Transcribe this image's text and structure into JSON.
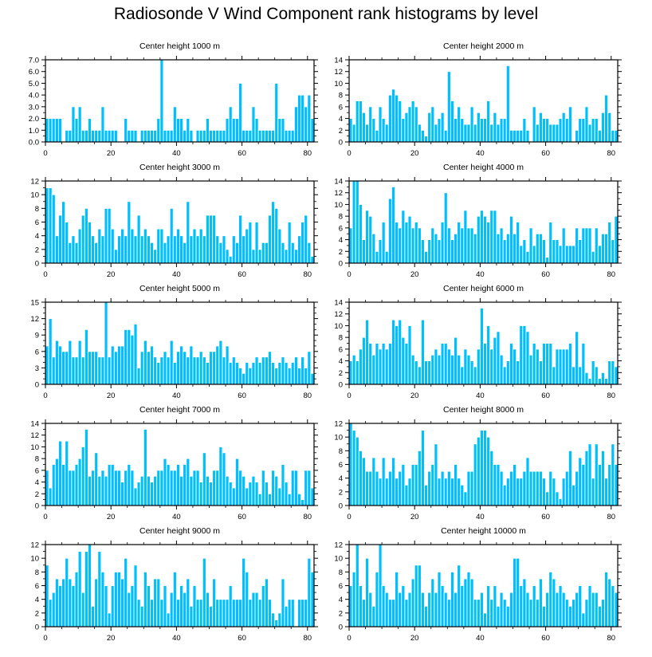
{
  "title": "Radiosonde V Wind Component rank histograms by level",
  "colors": {
    "bar": "#00bfff",
    "bar_edge": "#ffffff",
    "axis": "#000000"
  },
  "chart_data": [
    {
      "type": "bar",
      "title": "Center height 1000 m",
      "xlim": [
        0,
        82
      ],
      "ylim": [
        0,
        7
      ],
      "xticks": [
        0,
        20,
        40,
        60,
        80
      ],
      "yticks": [
        0,
        1,
        2,
        3,
        4,
        5,
        6,
        7
      ],
      "ytick_labels": [
        "0.0",
        "1.0",
        "2.0",
        "3.0",
        "4.0",
        "5.0",
        "6.0",
        "7.0"
      ],
      "values": [
        2,
        2,
        2,
        2,
        2,
        0,
        1,
        1,
        3,
        2,
        3,
        1,
        1,
        2,
        1,
        1,
        1,
        3,
        1,
        1,
        1,
        1,
        0,
        0,
        2,
        1,
        1,
        1,
        0,
        1,
        1,
        1,
        1,
        1,
        2,
        7,
        1,
        1,
        1,
        3,
        2,
        2,
        1,
        2,
        1,
        0,
        1,
        1,
        1,
        2,
        1,
        1,
        1,
        1,
        1,
        2,
        3,
        2,
        2,
        5,
        1,
        1,
        1,
        3,
        2,
        1,
        1,
        1,
        1,
        1,
        5,
        2,
        2,
        1,
        1,
        1,
        3,
        4,
        4,
        3,
        4,
        2
      ]
    },
    {
      "type": "bar",
      "title": "Center height 2000 m",
      "xlim": [
        0,
        82
      ],
      "ylim": [
        0,
        14
      ],
      "xticks": [
        0,
        20,
        40,
        60,
        80
      ],
      "yticks": [
        0,
        2,
        4,
        6,
        8,
        10,
        12,
        14
      ],
      "ytick_labels": [
        "0",
        "2",
        "4",
        "6",
        "8",
        "10",
        "12",
        "14"
      ],
      "values": [
        4,
        3,
        7,
        7,
        5,
        3,
        6,
        4,
        2,
        6,
        4,
        3,
        8,
        9,
        8,
        7,
        4,
        5,
        6,
        7,
        6,
        3,
        2,
        1,
        5,
        6,
        3,
        4,
        5,
        2,
        12,
        7,
        4,
        6,
        4,
        3,
        3,
        6,
        3,
        5,
        4,
        4,
        7,
        3,
        5,
        3,
        4,
        4,
        13,
        2,
        2,
        2,
        2,
        4,
        2,
        0,
        6,
        3,
        5,
        4,
        4,
        3,
        3,
        3,
        4,
        5,
        4,
        6,
        0,
        2,
        4,
        4,
        6,
        3,
        4,
        4,
        2,
        5,
        8,
        5,
        2,
        2
      ]
    },
    {
      "type": "bar",
      "title": "Center height 3000 m",
      "xlim": [
        0,
        82
      ],
      "ylim": [
        0,
        12
      ],
      "xticks": [
        0,
        20,
        40,
        60,
        80
      ],
      "yticks": [
        0,
        2,
        4,
        6,
        8,
        10,
        12
      ],
      "ytick_labels": [
        "0",
        "2",
        "4",
        "6",
        "8",
        "10",
        "12"
      ],
      "values": [
        11,
        11,
        10,
        4,
        7,
        9,
        6,
        3,
        4,
        3,
        5,
        7,
        8,
        6,
        4,
        3,
        5,
        4,
        8,
        8,
        5,
        2,
        4,
        5,
        4,
        9,
        5,
        4,
        7,
        4,
        5,
        4,
        3,
        2,
        5,
        5,
        3,
        4,
        8,
        4,
        5,
        4,
        3,
        9,
        4,
        5,
        4,
        5,
        4,
        7,
        7,
        7,
        4,
        3,
        4,
        2,
        1,
        4,
        3,
        7,
        4,
        5,
        6,
        2,
        6,
        2,
        3,
        3,
        7,
        9,
        8,
        5,
        3,
        2,
        6,
        3,
        2,
        4,
        6,
        7,
        3,
        1
      ]
    },
    {
      "type": "bar",
      "title": "Center height 4000 m",
      "xlim": [
        0,
        82
      ],
      "ylim": [
        0,
        14
      ],
      "xticks": [
        0,
        20,
        40,
        60,
        80
      ],
      "yticks": [
        0,
        2,
        4,
        6,
        8,
        10,
        12,
        14
      ],
      "ytick_labels": [
        "0",
        "2",
        "4",
        "6",
        "8",
        "10",
        "12",
        "14"
      ],
      "values": [
        6,
        14,
        14,
        10,
        4,
        9,
        8,
        5,
        2,
        4,
        7,
        2,
        11,
        13,
        7,
        6,
        9,
        7,
        8,
        6,
        7,
        6,
        4,
        2,
        4,
        6,
        5,
        4,
        7,
        12,
        6,
        4,
        5,
        7,
        6,
        9,
        6,
        6,
        5,
        8,
        9,
        8,
        7,
        9,
        9,
        5,
        6,
        4,
        5,
        8,
        5,
        7,
        3,
        4,
        2,
        6,
        3,
        5,
        5,
        4,
        1,
        7,
        4,
        4,
        3,
        6,
        3,
        3,
        3,
        6,
        4,
        6,
        6,
        6,
        2,
        6,
        3,
        5,
        5,
        7,
        4,
        8
      ]
    },
    {
      "type": "bar",
      "title": "Center height 5000 m",
      "xlim": [
        0,
        82
      ],
      "ylim": [
        0,
        15
      ],
      "xticks": [
        0,
        20,
        40,
        60,
        80
      ],
      "yticks": [
        0,
        3,
        6,
        9,
        12,
        15
      ],
      "ytick_labels": [
        "0",
        "3",
        "6",
        "9",
        "12",
        "15"
      ],
      "values": [
        7,
        12,
        5,
        8,
        7,
        6,
        6,
        8,
        5,
        5,
        8,
        5,
        10,
        6,
        6,
        6,
        5,
        5,
        15,
        5,
        7,
        6,
        7,
        7,
        10,
        10,
        9,
        11,
        3,
        6,
        8,
        6,
        7,
        5,
        4,
        5,
        6,
        5,
        8,
        4,
        6,
        7,
        6,
        5,
        7,
        5,
        5,
        6,
        5,
        4,
        6,
        6,
        7,
        8,
        5,
        7,
        4,
        5,
        4,
        3,
        2,
        4,
        3,
        4,
        5,
        4,
        5,
        5,
        6,
        4,
        3,
        4,
        5,
        4,
        3,
        4,
        5,
        3,
        5,
        3,
        6,
        2
      ]
    },
    {
      "type": "bar",
      "title": "Center height 6000 m",
      "xlim": [
        0,
        82
      ],
      "ylim": [
        0,
        14
      ],
      "xticks": [
        0,
        20,
        40,
        60,
        80
      ],
      "yticks": [
        0,
        2,
        4,
        6,
        8,
        10,
        12,
        14
      ],
      "ytick_labels": [
        "0",
        "2",
        "4",
        "6",
        "8",
        "10",
        "12",
        "14"
      ],
      "values": [
        4,
        5,
        4,
        6,
        8,
        11,
        7,
        5,
        7,
        6,
        7,
        6,
        7,
        11,
        10,
        11,
        8,
        7,
        10,
        5,
        4,
        3,
        11,
        4,
        4,
        5,
        6,
        5,
        7,
        7,
        6,
        5,
        8,
        5,
        3,
        6,
        5,
        4,
        3,
        6,
        13,
        7,
        10,
        6,
        8,
        9,
        5,
        3,
        4,
        7,
        6,
        4,
        10,
        10,
        9,
        5,
        7,
        6,
        4,
        7,
        7,
        7,
        3,
        6,
        6,
        6,
        6,
        7,
        3,
        9,
        3,
        7,
        2,
        1,
        4,
        3,
        1,
        2,
        1,
        4,
        4,
        3
      ]
    },
    {
      "type": "bar",
      "title": "Center height 7000 m",
      "xlim": [
        0,
        82
      ],
      "ylim": [
        0,
        14
      ],
      "xticks": [
        0,
        20,
        40,
        60,
        80
      ],
      "yticks": [
        0,
        2,
        4,
        6,
        8,
        10,
        12,
        14
      ],
      "ytick_labels": [
        "0",
        "2",
        "4",
        "6",
        "8",
        "10",
        "12",
        "14"
      ],
      "values": [
        6,
        3,
        7,
        8,
        11,
        7,
        11,
        6,
        6,
        7,
        8,
        10,
        13,
        5,
        6,
        9,
        5,
        6,
        5,
        7,
        7,
        6,
        6,
        4,
        6,
        7,
        6,
        3,
        4,
        5,
        13,
        5,
        4,
        5,
        6,
        6,
        8,
        7,
        6,
        6,
        7,
        5,
        7,
        8,
        5,
        6,
        6,
        4,
        9,
        5,
        4,
        6,
        6,
        10,
        9,
        5,
        4,
        3,
        8,
        6,
        5,
        3,
        4,
        5,
        4,
        2,
        6,
        4,
        2,
        6,
        5,
        3,
        7,
        4,
        2,
        6,
        6,
        2,
        1,
        6,
        6,
        3
      ]
    },
    {
      "type": "bar",
      "title": "Center height 8000 m",
      "xlim": [
        0,
        82
      ],
      "ylim": [
        0,
        12
      ],
      "xticks": [
        0,
        20,
        40,
        60,
        80
      ],
      "yticks": [
        0,
        2,
        4,
        6,
        8,
        10,
        12
      ],
      "ytick_labels": [
        "0",
        "2",
        "4",
        "6",
        "8",
        "10",
        "12"
      ],
      "values": [
        12,
        11,
        10,
        8,
        7,
        5,
        5,
        7,
        5,
        4,
        7,
        4,
        5,
        7,
        4,
        5,
        6,
        3,
        4,
        6,
        6,
        8,
        11,
        3,
        5,
        6,
        9,
        4,
        5,
        4,
        5,
        4,
        6,
        4,
        3,
        2,
        5,
        5,
        9,
        10,
        11,
        11,
        10,
        8,
        6,
        6,
        5,
        3,
        4,
        5,
        6,
        4,
        4,
        5,
        7,
        5,
        5,
        5,
        5,
        4,
        2,
        5,
        4,
        2,
        1,
        4,
        5,
        8,
        3,
        5,
        7,
        6,
        8,
        9,
        4,
        9,
        6,
        8,
        4,
        6,
        9,
        6
      ]
    },
    {
      "type": "bar",
      "title": "Center height 9000 m",
      "xlim": [
        0,
        82
      ],
      "ylim": [
        0,
        12
      ],
      "xticks": [
        0,
        20,
        40,
        60,
        80
      ],
      "yticks": [
        0,
        2,
        4,
        6,
        8,
        10,
        12
      ],
      "ytick_labels": [
        "0",
        "2",
        "4",
        "6",
        "8",
        "10",
        "12"
      ],
      "values": [
        9,
        4,
        5,
        7,
        6,
        7,
        10,
        7,
        6,
        8,
        11,
        5,
        11,
        12,
        3,
        7,
        11,
        8,
        6,
        2,
        6,
        8,
        8,
        7,
        10,
        5,
        6,
        9,
        4,
        3,
        8,
        6,
        4,
        7,
        7,
        4,
        6,
        2,
        5,
        8,
        4,
        6,
        5,
        7,
        3,
        6,
        4,
        4,
        10,
        5,
        3,
        7,
        4,
        4,
        4,
        4,
        6,
        4,
        4,
        4,
        10,
        8,
        4,
        5,
        5,
        4,
        6,
        7,
        4,
        2,
        1,
        2,
        7,
        3,
        4,
        4,
        0,
        4,
        4,
        4,
        10,
        8
      ]
    },
    {
      "type": "bar",
      "title": "Center height 10000 m",
      "xlim": [
        0,
        82
      ],
      "ylim": [
        0,
        12
      ],
      "xticks": [
        0,
        20,
        40,
        60,
        80
      ],
      "yticks": [
        0,
        2,
        4,
        6,
        8,
        10,
        12
      ],
      "ytick_labels": [
        "0",
        "2",
        "4",
        "6",
        "8",
        "10",
        "12"
      ],
      "values": [
        6,
        8,
        12,
        6,
        4,
        10,
        5,
        3,
        8,
        12,
        6,
        5,
        4,
        4,
        8,
        5,
        6,
        4,
        5,
        7,
        9,
        9,
        5,
        3,
        5,
        7,
        5,
        8,
        6,
        5,
        4,
        8,
        5,
        9,
        6,
        7,
        8,
        7,
        4,
        4,
        5,
        2,
        6,
        4,
        6,
        3,
        5,
        4,
        3,
        5,
        10,
        10,
        6,
        7,
        5,
        4,
        6,
        4,
        7,
        3,
        5,
        8,
        7,
        5,
        6,
        5,
        4,
        3,
        4,
        5,
        6,
        2,
        4,
        6,
        5,
        5,
        3,
        4,
        8,
        7,
        6,
        5
      ]
    }
  ]
}
